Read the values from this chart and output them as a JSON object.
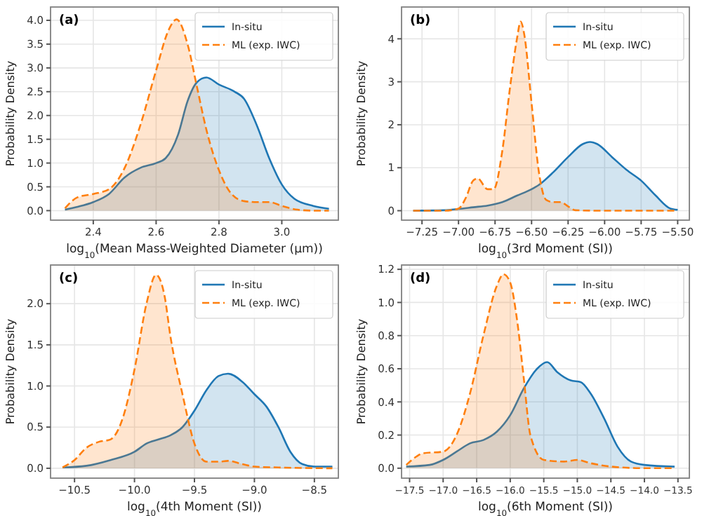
{
  "chart_data": [
    {
      "type": "area",
      "title": "(a)",
      "xlabel": "log$_{10}$(Mean Mass-Weighted Diameter (μm))",
      "ylabel": "Probability Density",
      "xlim": [
        2.264,
        3.18
      ],
      "ylim": [
        -0.2,
        4.28
      ],
      "xticks": [
        2.4,
        2.6,
        2.8,
        {
          "value": 3,
          "label": "3.0"
        }
      ],
      "yticks": [
        {
          "value": 0,
          "label": "0.0"
        },
        0.5,
        {
          "value": 1,
          "label": "1.0"
        },
        1.5,
        {
          "value": 2,
          "label": "2.0"
        },
        2.5,
        {
          "value": 3,
          "label": "3.0"
        },
        3.5,
        {
          "value": 4,
          "label": "4.0"
        }
      ],
      "grid": true,
      "legend": "top right",
      "series": [
        {
          "name": "In-situ",
          "color": "#1f77b4",
          "line_style": "solid",
          "x": [
            2.31,
            2.35,
            2.4,
            2.45,
            2.5,
            2.55,
            2.6,
            2.63,
            2.67,
            2.7,
            2.73,
            2.76,
            2.8,
            2.85,
            2.88,
            2.92,
            2.96,
            3.0,
            3.04,
            3.1,
            3.15
          ],
          "values": [
            0.02,
            0.08,
            0.18,
            0.35,
            0.7,
            0.9,
            1.0,
            1.1,
            1.6,
            2.3,
            2.7,
            2.8,
            2.65,
            2.5,
            2.35,
            1.8,
            1.1,
            0.55,
            0.25,
            0.1,
            0.04
          ]
        },
        {
          "name": "ML (exp. IWC)",
          "color": "#ff7f0e",
          "line_style": "dashed",
          "x": [
            2.31,
            2.35,
            2.4,
            2.45,
            2.5,
            2.55,
            2.6,
            2.64,
            2.665,
            2.7,
            2.73,
            2.76,
            2.8,
            2.84,
            2.88,
            2.92,
            2.96,
            3.0,
            3.05,
            3.1,
            3.15
          ],
          "values": [
            0.05,
            0.28,
            0.35,
            0.45,
            0.9,
            1.8,
            2.95,
            3.8,
            4.02,
            3.5,
            2.6,
            1.7,
            0.85,
            0.35,
            0.2,
            0.18,
            0.18,
            0.1,
            0.02,
            0,
            0
          ]
        }
      ]
    },
    {
      "type": "area",
      "title": "(b)",
      "xlabel": "log$_{10}$(3rd Moment (SI))",
      "ylabel": "Probability Density",
      "xlim": [
        -7.39,
        -5.42
      ],
      "ylim": [
        -0.22,
        4.74
      ],
      "xticks": [
        {
          "value": -7.25,
          "label": "−7.25"
        },
        {
          "value": -7,
          "label": "−7.00"
        },
        {
          "value": -6.75,
          "label": "−6.75"
        },
        {
          "value": -6.5,
          "label": "−6.50"
        },
        {
          "value": -6.25,
          "label": "−6.25"
        },
        {
          "value": -6,
          "label": "−6.00"
        },
        {
          "value": -5.75,
          "label": "−5.75"
        },
        {
          "value": -5.5,
          "label": "−5.50"
        }
      ],
      "yticks": [
        0,
        1,
        2,
        3,
        4
      ],
      "grid": true,
      "legend": "top right",
      "series": [
        {
          "name": "In-situ",
          "color": "#1f77b4",
          "line_style": "solid",
          "x": [
            -7.31,
            -7.1,
            -7.0,
            -6.9,
            -6.8,
            -6.7,
            -6.6,
            -6.5,
            -6.45,
            -6.35,
            -6.25,
            -6.15,
            -6.1,
            -6.05,
            -5.95,
            -5.85,
            -5.75,
            -5.65,
            -5.55,
            -5.5
          ],
          "values": [
            0,
            0.01,
            0.04,
            0.08,
            0.12,
            0.2,
            0.35,
            0.5,
            0.6,
            0.9,
            1.25,
            1.55,
            1.6,
            1.55,
            1.25,
            0.95,
            0.7,
            0.35,
            0.05,
            0.02
          ]
        },
        {
          "name": "ML (exp. IWC)",
          "color": "#ff7f0e",
          "line_style": "dashed",
          "x": [
            -7.31,
            -7.1,
            -7.0,
            -6.95,
            -6.9,
            -6.87,
            -6.8,
            -6.76,
            -6.7,
            -6.65,
            -6.6,
            -6.575,
            -6.55,
            -6.5,
            -6.45,
            -6.4,
            -6.35,
            -6.3,
            -6.25,
            -6.2,
            -6.0,
            -5.5
          ],
          "values": [
            0,
            0,
            0.05,
            0.3,
            0.7,
            0.75,
            0.5,
            0.5,
            1.4,
            2.8,
            4.0,
            4.4,
            4.1,
            2.5,
            0.9,
            0.25,
            0.2,
            0.2,
            0.1,
            0.01,
            0,
            0
          ]
        }
      ]
    },
    {
      "type": "area",
      "title": "(c)",
      "xlabel": "log$_{10}$(4th Moment (SI))",
      "ylabel": "Probability Density",
      "xlim": [
        -10.7,
        -8.3
      ],
      "ylim": [
        -0.12,
        2.47
      ],
      "xticks": [
        {
          "value": -10.5,
          "label": "−10.5"
        },
        {
          "value": -10,
          "label": "−10.0"
        },
        {
          "value": -9.5,
          "label": "−9.5"
        },
        {
          "value": -9,
          "label": "−9.0"
        },
        {
          "value": -8.5,
          "label": "−8.5"
        }
      ],
      "yticks": [
        {
          "value": 0,
          "label": "0.0"
        },
        0.5,
        {
          "value": 1,
          "label": "1.0"
        },
        1.5,
        {
          "value": 2,
          "label": "2.0"
        }
      ],
      "grid": true,
      "legend": "top right",
      "series": [
        {
          "name": "In-situ",
          "color": "#1f77b4",
          "line_style": "solid",
          "x": [
            -10.6,
            -10.4,
            -10.2,
            -10.0,
            -9.9,
            -9.8,
            -9.7,
            -9.6,
            -9.5,
            -9.4,
            -9.3,
            -9.22,
            -9.1,
            -9.0,
            -8.9,
            -8.8,
            -8.7,
            -8.6,
            -8.5,
            -8.35
          ],
          "values": [
            0.01,
            0.03,
            0.1,
            0.2,
            0.3,
            0.35,
            0.4,
            0.5,
            0.7,
            0.95,
            1.12,
            1.15,
            1.05,
            0.9,
            0.75,
            0.5,
            0.2,
            0.05,
            0.02,
            0.02
          ]
        },
        {
          "name": "ML (exp. IWC)",
          "color": "#ff7f0e",
          "line_style": "dashed",
          "x": [
            -10.6,
            -10.5,
            -10.4,
            -10.3,
            -10.2,
            -10.1,
            -10.0,
            -9.9,
            -9.82,
            -9.75,
            -9.7,
            -9.6,
            -9.5,
            -9.4,
            -9.3,
            -9.22,
            -9.1,
            -9.0,
            -8.8,
            -8.35
          ],
          "values": [
            0.01,
            0.1,
            0.25,
            0.32,
            0.35,
            0.6,
            1.2,
            2.0,
            2.35,
            2.1,
            1.6,
            0.9,
            0.3,
            0.08,
            0.08,
            0.09,
            0.05,
            0.02,
            0.01,
            0
          ]
        }
      ]
    },
    {
      "type": "area",
      "title": "(d)",
      "xlabel": "log$_{10}$(6th Moment (SI))",
      "ylabel": "Probability Density",
      "xlim": [
        -17.62,
        -13.33
      ],
      "ylim": [
        -0.06,
        1.226
      ],
      "xticks": [
        {
          "value": -17.5,
          "label": "−17.5"
        },
        {
          "value": -17,
          "label": "−17.0"
        },
        {
          "value": -16.5,
          "label": "−16.5"
        },
        {
          "value": -16,
          "label": "−16.0"
        },
        {
          "value": -15.5,
          "label": "−15.5"
        },
        {
          "value": -15,
          "label": "−15.0"
        },
        {
          "value": -14.5,
          "label": "−14.5"
        },
        {
          "value": -14,
          "label": "−14.0"
        },
        {
          "value": -13.5,
          "label": "−13.5"
        }
      ],
      "yticks": [
        {
          "value": 0,
          "label": "0.0"
        },
        0.2,
        0.4,
        0.6,
        0.8,
        {
          "value": 1,
          "label": "1.0"
        },
        1.2
      ],
      "grid": true,
      "legend": "top right",
      "series": [
        {
          "name": "In-situ",
          "color": "#1f77b4",
          "line_style": "solid",
          "x": [
            -17.55,
            -17.2,
            -17.0,
            -16.8,
            -16.6,
            -16.4,
            -16.2,
            -16.0,
            -15.8,
            -15.6,
            -15.45,
            -15.3,
            -15.1,
            -14.95,
            -14.8,
            -14.6,
            -14.4,
            -14.2,
            -14.0,
            -13.55
          ],
          "values": [
            0.01,
            0.02,
            0.05,
            0.1,
            0.15,
            0.17,
            0.22,
            0.32,
            0.48,
            0.6,
            0.64,
            0.58,
            0.53,
            0.52,
            0.45,
            0.3,
            0.13,
            0.04,
            0.02,
            0.01
          ]
        },
        {
          "name": "ML (exp. IWC)",
          "color": "#ff7f0e",
          "line_style": "dashed",
          "x": [
            -17.55,
            -17.4,
            -17.3,
            -17.0,
            -16.8,
            -16.6,
            -16.4,
            -16.2,
            -16.1,
            -16.0,
            -15.9,
            -15.8,
            -15.7,
            -15.5,
            -15.2,
            -15.0,
            -14.8,
            -14.5,
            -14.0,
            -13.55
          ],
          "values": [
            0.02,
            0.07,
            0.09,
            0.1,
            0.2,
            0.45,
            0.8,
            1.1,
            1.17,
            1.12,
            0.9,
            0.55,
            0.2,
            0.05,
            0.04,
            0.05,
            0.03,
            0.01,
            0,
            0
          ]
        }
      ]
    }
  ]
}
